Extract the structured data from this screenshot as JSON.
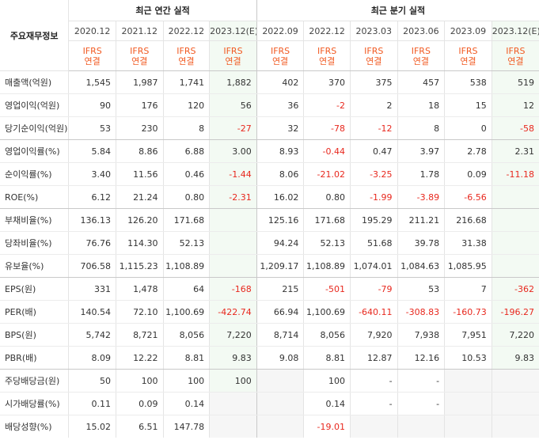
{
  "header": {
    "row_label": "주요재무정보",
    "annual_title": "최근 연간 실적",
    "quarter_title": "최근 분기 실적",
    "periods": [
      "2020.12",
      "2021.12",
      "2022.12",
      "2023.12(E)",
      "2022.09",
      "2022.12",
      "2023.03",
      "2023.06",
      "2023.09",
      "2023.12(E)"
    ],
    "ifrs_line1": "IFRS",
    "ifrs_line2": "연결"
  },
  "rows": [
    {
      "label": "매출액(억원)",
      "values": [
        "1,545",
        "1,987",
        "1,741",
        "1,882",
        "402",
        "370",
        "375",
        "457",
        "538",
        "519"
      ]
    },
    {
      "label": "영업이익(억원)",
      "values": [
        "90",
        "176",
        "120",
        "56",
        "36",
        "-2",
        "2",
        "18",
        "15",
        "12"
      ]
    },
    {
      "label": "당기순이익(억원)",
      "values": [
        "53",
        "230",
        "8",
        "-27",
        "32",
        "-78",
        "-12",
        "8",
        "0",
        "-58"
      ]
    },
    {
      "label": "영업이익률(%)",
      "values": [
        "5.84",
        "8.86",
        "6.88",
        "3.00",
        "8.93",
        "-0.44",
        "0.47",
        "3.97",
        "2.78",
        "2.31"
      ]
    },
    {
      "label": "순이익률(%)",
      "values": [
        "3.40",
        "11.56",
        "0.46",
        "-1.44",
        "8.06",
        "-21.02",
        "-3.25",
        "1.78",
        "0.09",
        "-11.18"
      ]
    },
    {
      "label": "ROE(%)",
      "values": [
        "6.12",
        "21.24",
        "0.80",
        "-2.31",
        "16.02",
        "0.80",
        "-1.99",
        "-3.89",
        "-6.56",
        ""
      ]
    },
    {
      "label": "부채비율(%)",
      "values": [
        "136.13",
        "126.20",
        "171.68",
        "",
        "125.16",
        "171.68",
        "195.29",
        "211.21",
        "216.68",
        ""
      ]
    },
    {
      "label": "당좌비율(%)",
      "values": [
        "76.76",
        "114.30",
        "52.13",
        "",
        "94.24",
        "52.13",
        "51.68",
        "39.78",
        "31.38",
        ""
      ]
    },
    {
      "label": "유보율(%)",
      "values": [
        "706.58",
        "1,115.23",
        "1,108.89",
        "",
        "1,209.17",
        "1,108.89",
        "1,074.01",
        "1,084.63",
        "1,085.95",
        ""
      ]
    },
    {
      "label": "EPS(원)",
      "values": [
        "331",
        "1,478",
        "64",
        "-168",
        "215",
        "-501",
        "-79",
        "53",
        "7",
        "-362"
      ]
    },
    {
      "label": "PER(배)",
      "values": [
        "140.54",
        "72.10",
        "1,100.69",
        "-422.74",
        "66.94",
        "1,100.69",
        "-640.11",
        "-308.83",
        "-160.73",
        "-196.27"
      ]
    },
    {
      "label": "BPS(원)",
      "values": [
        "5,742",
        "8,721",
        "8,056",
        "7,220",
        "8,714",
        "8,056",
        "7,920",
        "7,938",
        "7,951",
        "7,220"
      ]
    },
    {
      "label": "PBR(배)",
      "values": [
        "8.09",
        "12.22",
        "8.81",
        "9.83",
        "9.08",
        "8.81",
        "12.87",
        "12.16",
        "10.53",
        "9.83"
      ]
    },
    {
      "label": "주당배당금(원)",
      "values": [
        "50",
        "100",
        "100",
        "100",
        "",
        "100",
        "-",
        "-",
        "",
        ""
      ]
    },
    {
      "label": "시가배당률(%)",
      "values": [
        "0.11",
        "0.09",
        "0.14",
        "",
        "",
        "0.14",
        "-",
        "-",
        "",
        ""
      ]
    },
    {
      "label": "배당성향(%)",
      "values": [
        "15.02",
        "6.51",
        "147.78",
        "",
        "",
        "-19.01",
        "",
        "",
        "",
        ""
      ]
    }
  ]
}
